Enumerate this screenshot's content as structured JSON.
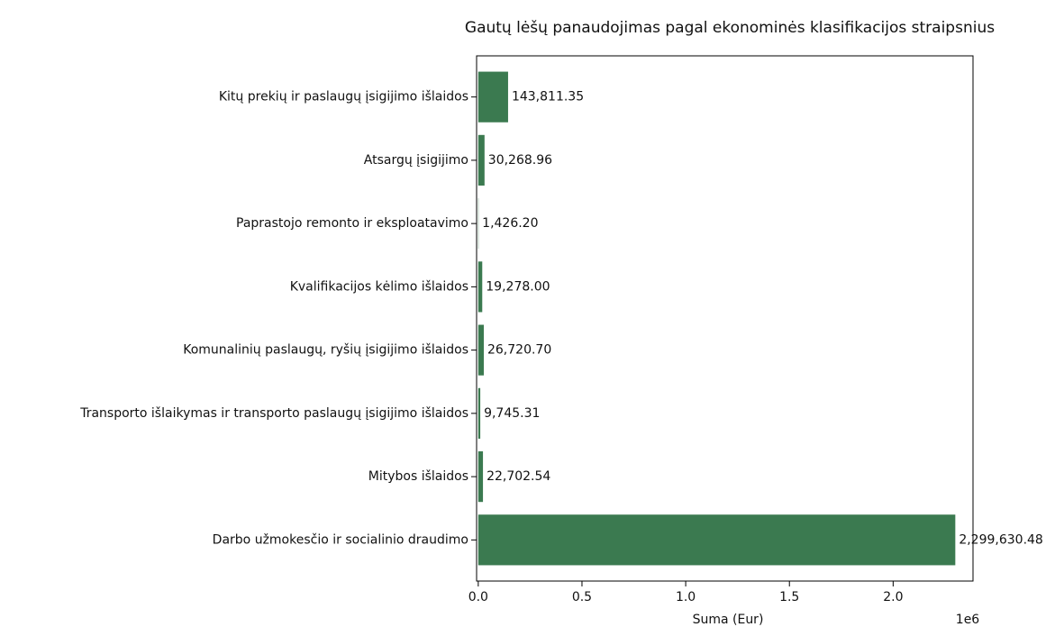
{
  "chart_data": {
    "type": "barh",
    "title": "Gautų lėšų panaudojimas pagal ekonominės klasifikacijos straipsnius",
    "xlabel": "Suma (Eur)",
    "offset_label": "1e6",
    "categories": [
      "Kitų prekių ir paslaugų įsigijimo išlaidos",
      "Atsargų įsigijimo",
      "Paprastojo remonto ir eksploatavimo",
      "Kvalifikacijos kėlimo išlaidos",
      "Komunalinių paslaugų, ryšių įsigijimo išlaidos",
      "Transporto išlaikymas ir transporto paslaugų įsigijimo išlaidos",
      "Mitybos išlaidos",
      "Darbo užmokesčio ir socialinio draudimo"
    ],
    "values": [
      143811.35,
      30268.96,
      1426.2,
      19278.0,
      26720.7,
      9745.31,
      22702.54,
      2299630.48
    ],
    "value_labels": [
      "143,811.35",
      "30,268.96",
      "1,426.20",
      "19,278.00",
      "26,720.70",
      "9,745.31",
      "22,702.54",
      "2,299,630.48"
    ],
    "color": "#3b7a50",
    "xlim": [
      -8000,
      2385000
    ],
    "xticks": [
      {
        "value": 0,
        "label": "0.0"
      },
      {
        "value": 500000,
        "label": "0.5"
      },
      {
        "value": 1000000,
        "label": "1.0"
      },
      {
        "value": 1500000,
        "label": "1.5"
      },
      {
        "value": 2000000,
        "label": "2.0"
      }
    ]
  }
}
